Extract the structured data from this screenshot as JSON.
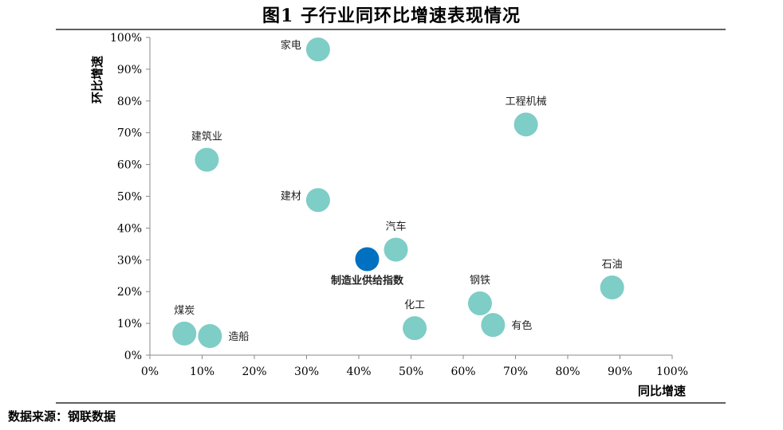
{
  "chart_data": {
    "type": "scatter",
    "title": "图1 子行业同环比增速表现情况",
    "xlabel": "同比增速",
    "ylabel": "环比增速",
    "xlim": [
      0,
      100
    ],
    "ylim": [
      0,
      100
    ],
    "xticks": [
      "0%",
      "10%",
      "20%",
      "30%",
      "40%",
      "50%",
      "60%",
      "70%",
      "80%",
      "90%",
      "100%"
    ],
    "yticks": [
      "0%",
      "10%",
      "20%",
      "30%",
      "40%",
      "50%",
      "60%",
      "70%",
      "80%",
      "90%",
      "100%"
    ],
    "grid": false,
    "points": [
      {
        "label": "家电",
        "x": 32.2,
        "y": 96.2,
        "highlight": false,
        "label_pos": "left"
      },
      {
        "label": "工程机械",
        "x": 72.0,
        "y": 72.6,
        "highlight": false,
        "label_pos": "top"
      },
      {
        "label": "建筑业",
        "x": 10.9,
        "y": 61.5,
        "highlight": false,
        "label_pos": "top"
      },
      {
        "label": "建材",
        "x": 32.2,
        "y": 48.8,
        "highlight": false,
        "label_pos": "left"
      },
      {
        "label": "汽车",
        "x": 47.1,
        "y": 33.2,
        "highlight": false,
        "label_pos": "top"
      },
      {
        "label": "制造业供给指数",
        "x": 41.6,
        "y": 30.2,
        "highlight": true,
        "label_pos": "bottom"
      },
      {
        "label": "石油",
        "x": 88.5,
        "y": 21.3,
        "highlight": false,
        "label_pos": "top"
      },
      {
        "label": "钢铁",
        "x": 63.2,
        "y": 16.3,
        "highlight": false,
        "label_pos": "top"
      },
      {
        "label": "化工",
        "x": 50.7,
        "y": 8.5,
        "highlight": false,
        "label_pos": "top"
      },
      {
        "label": "有色",
        "x": 65.7,
        "y": 9.5,
        "highlight": false,
        "label_pos": "right"
      },
      {
        "label": "煤炭",
        "x": 6.6,
        "y": 6.8,
        "highlight": false,
        "label_pos": "top"
      },
      {
        "label": "造船",
        "x": 11.5,
        "y": 6.0,
        "highlight": false,
        "label_pos": "right"
      }
    ],
    "colors": {
      "point": "#7ecdc6",
      "highlight": "#0070c0",
      "highlight_label": "#4472c4"
    }
  },
  "source": "数据来源：钢联数据"
}
